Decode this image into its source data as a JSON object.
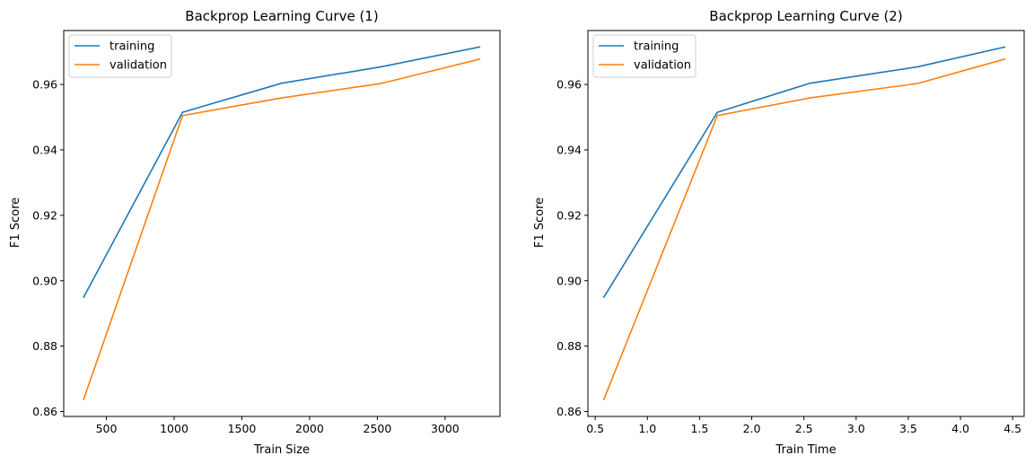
{
  "chart_data": [
    {
      "type": "line",
      "title": "Backprop Learning Curve (1)",
      "xlabel": "Train Size",
      "ylabel": "F1 Score",
      "xlim": [
        185,
        3405
      ],
      "ylim": [
        0.8585,
        0.9765
      ],
      "xticks": [
        500,
        1000,
        1500,
        2000,
        2500,
        3000
      ],
      "xtick_labels": [
        "500",
        "1000",
        "1500",
        "2000",
        "2500",
        "3000"
      ],
      "yticks": [
        0.86,
        0.88,
        0.9,
        0.92,
        0.94,
        0.96
      ],
      "ytick_labels": [
        "0.86",
        "0.88",
        "0.90",
        "0.92",
        "0.94",
        "0.96"
      ],
      "legend": "top-left",
      "grid": false,
      "x": [
        330,
        1062,
        1795,
        2528,
        3260
      ],
      "series": [
        {
          "name": "training",
          "color": "#1f77b4",
          "values": [
            0.8948,
            0.9515,
            0.9604,
            0.9654,
            0.9715
          ]
        },
        {
          "name": "validation",
          "color": "#ff7f0e",
          "values": [
            0.8635,
            0.9505,
            0.9559,
            0.9603,
            0.9678
          ]
        }
      ]
    },
    {
      "type": "line",
      "title": "Backprop Learning Curve (2)",
      "xlabel": "Train Time",
      "ylabel": "F1 Score",
      "xlim": [
        0.43,
        4.61
      ],
      "ylim": [
        0.8585,
        0.9765
      ],
      "xticks": [
        0.5,
        1.0,
        1.5,
        2.0,
        2.5,
        3.0,
        3.5,
        4.0,
        4.5
      ],
      "xtick_labels": [
        "0.5",
        "1.0",
        "1.5",
        "2.0",
        "2.5",
        "3.0",
        "3.5",
        "4.0",
        "4.5"
      ],
      "yticks": [
        0.86,
        0.88,
        0.9,
        0.92,
        0.94,
        0.96
      ],
      "ytick_labels": [
        "0.86",
        "0.88",
        "0.90",
        "0.92",
        "0.94",
        "0.96"
      ],
      "legend": "top-left",
      "grid": false,
      "x": [
        0.58,
        1.67,
        2.56,
        3.59,
        4.43
      ],
      "series": [
        {
          "name": "training",
          "color": "#1f77b4",
          "values": [
            0.8948,
            0.9515,
            0.9604,
            0.9654,
            0.9715
          ]
        },
        {
          "name": "validation",
          "color": "#ff7f0e",
          "values": [
            0.8635,
            0.9505,
            0.9559,
            0.9603,
            0.9678
          ]
        }
      ]
    }
  ]
}
